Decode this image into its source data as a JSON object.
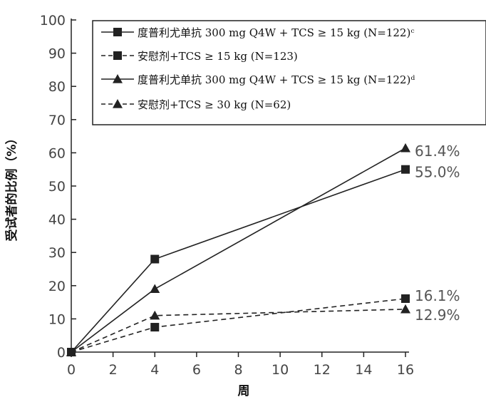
{
  "chart_data": {
    "type": "line",
    "xlabel": "周",
    "ylabel": "受试者的比例（%）",
    "xlim": [
      0,
      16
    ],
    "ylim": [
      0,
      100
    ],
    "x_ticks": [
      "0",
      "2",
      "4",
      "6",
      "8",
      "10",
      "12",
      "14",
      "16"
    ],
    "y_ticks": [
      "0",
      "10",
      "20",
      "30",
      "40",
      "50",
      "60",
      "70",
      "80",
      "90",
      "100"
    ],
    "grid": false,
    "legend_position": "top-right",
    "series": [
      {
        "name": "度普利尤单抗 300 mg Q4W + TCS ≥ 15 kg (N=122)ᶜ",
        "marker": "square",
        "line_style": "solid",
        "x": [
          0,
          4,
          16
        ],
        "y": [
          0,
          28,
          55.0
        ],
        "end_label": "55.0%"
      },
      {
        "name": "安慰剂+TCS ≥ 15 kg (N=123)",
        "marker": "square",
        "line_style": "dashed",
        "x": [
          0,
          4,
          16
        ],
        "y": [
          0,
          7.5,
          16.1
        ],
        "end_label": "16.1%"
      },
      {
        "name": "度普利尤单抗 300 mg Q4W + TCS ≥ 15 kg (N=122)ᵈ",
        "marker": "triangle",
        "line_style": "solid",
        "x": [
          0,
          4,
          16
        ],
        "y": [
          0,
          19,
          61.4
        ],
        "end_label": "61.4%"
      },
      {
        "name": "安慰剂+TCS ≥ 30 kg (N=62)",
        "marker": "triangle",
        "line_style": "dashed",
        "x": [
          0,
          4,
          16
        ],
        "y": [
          0,
          11,
          12.9
        ],
        "end_label": "12.9%"
      }
    ],
    "colors": {
      "line": "#222222",
      "marker": "#222222",
      "label": "#555555"
    }
  }
}
